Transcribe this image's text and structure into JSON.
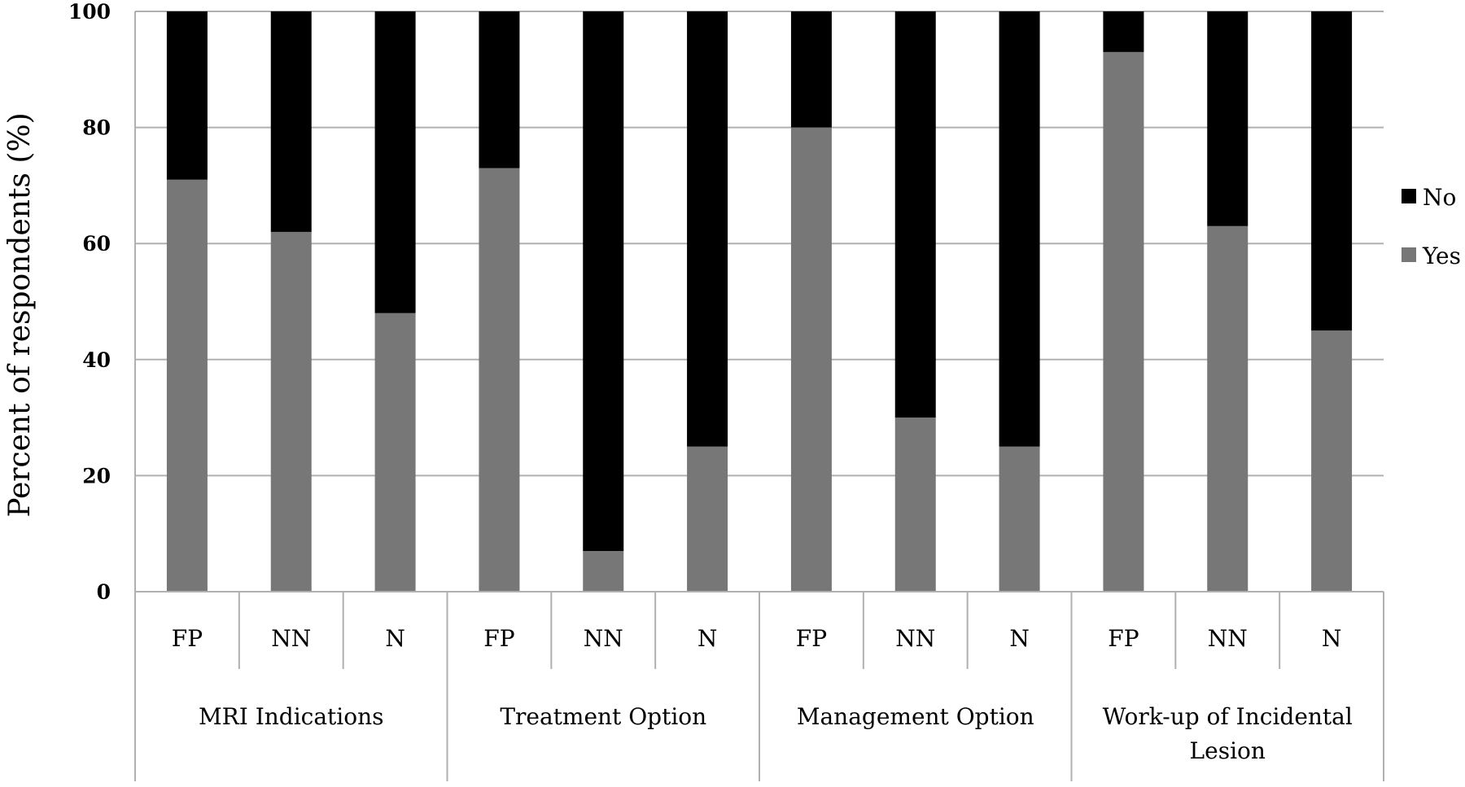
{
  "chart_data": {
    "type": "bar",
    "stacked": true,
    "ylabel": "Percent of respondents (%)",
    "ylim": [
      0,
      100
    ],
    "yticks": [
      "0",
      "20",
      "40",
      "60",
      "80",
      "100"
    ],
    "grid": true,
    "legend_position": "right",
    "groups": [
      {
        "label": "MRI Indications",
        "categories": [
          "FP",
          "NN",
          "N"
        ]
      },
      {
        "label": "Treatment Option",
        "categories": [
          "FP",
          "NN",
          "N"
        ]
      },
      {
        "label": "Management Option",
        "categories": [
          "FP",
          "NN",
          "N"
        ]
      },
      {
        "label": "Work-up of Incidental Lesion",
        "categories": [
          "FP",
          "NN",
          "N"
        ]
      }
    ],
    "series": [
      {
        "name": "Yes",
        "color": "#777777",
        "values": [
          71,
          62,
          48,
          73,
          7,
          25,
          80,
          30,
          25,
          93,
          63,
          45
        ]
      },
      {
        "name": "No",
        "color": "#000000",
        "values": [
          29,
          38,
          52,
          27,
          93,
          75,
          20,
          70,
          75,
          7,
          37,
          55
        ]
      }
    ],
    "legend": [
      "No",
      "Yes"
    ]
  }
}
